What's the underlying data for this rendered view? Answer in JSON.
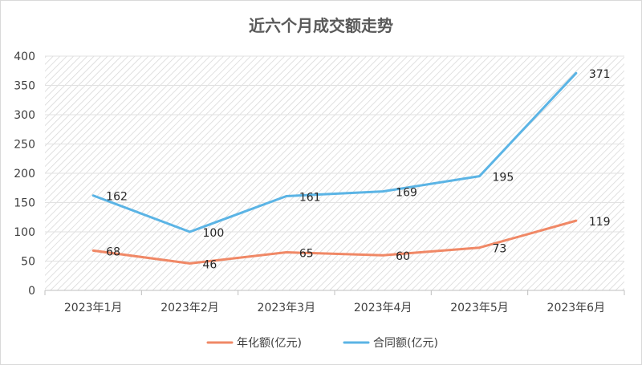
{
  "chart_data": {
    "type": "line",
    "title": "近六个月成交额走势",
    "categories": [
      "2023年1月",
      "2023年2月",
      "2023年3月",
      "2023年4月",
      "2023年5月",
      "2023年6月"
    ],
    "series": [
      {
        "name": "年化额(亿元)",
        "values": [
          68,
          46,
          65,
          60,
          73,
          119
        ],
        "color": "#f08866"
      },
      {
        "name": "合同额(亿元)",
        "values": [
          162,
          100,
          161,
          169,
          195,
          371
        ],
        "color": "#5bb4e5"
      }
    ],
    "ylim": [
      0,
      400
    ],
    "yticks": [
      "0",
      "50",
      "100",
      "150",
      "200",
      "250",
      "300",
      "350",
      "400"
    ],
    "grid": true,
    "legend": "bottom"
  }
}
